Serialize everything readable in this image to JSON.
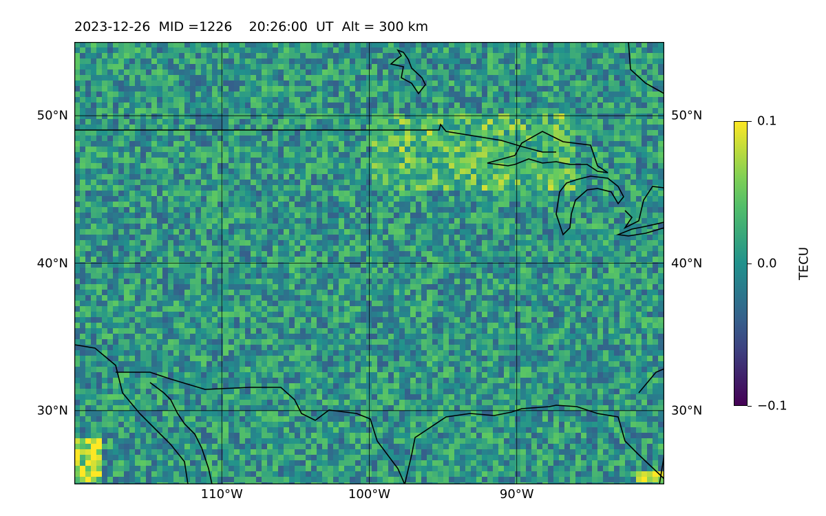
{
  "title": "2023-12-26  MID =1226    20:26:00  UT  Alt = 300 km",
  "map": {
    "type": "heatmap",
    "projection": "equirectangular",
    "extent": {
      "lon": [
        -120,
        -80
      ],
      "lat": [
        25,
        55
      ]
    },
    "lat_ticks": [
      {
        "value": 50,
        "label": "50°N"
      },
      {
        "value": 40,
        "label": "40°N"
      },
      {
        "value": 30,
        "label": "30°N"
      }
    ],
    "lon_ticks": [
      {
        "value": -110,
        "label": "110°W"
      },
      {
        "value": -100,
        "label": "100°W"
      },
      {
        "value": -90,
        "label": "90°W"
      }
    ],
    "grid": true,
    "colormap": "viridis",
    "coastline_color": "#000000",
    "high_patches": [
      {
        "region": "northern plains / upper midwest",
        "lon": [
          -100,
          -86
        ],
        "lat": [
          45,
          50
        ],
        "level": 0.04
      },
      {
        "region": "southwest corner",
        "lon": [
          -120,
          -118
        ],
        "lat": [
          25,
          28
        ],
        "level": 0.1
      },
      {
        "region": "southeast corner",
        "lon": [
          -82,
          -80
        ],
        "lat": [
          25,
          26
        ],
        "level": 0.1
      }
    ]
  },
  "colorbar": {
    "label": "TECU",
    "min": -0.1,
    "max": 0.1,
    "ticks": [
      {
        "value": 0.1,
        "label": "0.1"
      },
      {
        "value": 0.0,
        "label": "0.0"
      },
      {
        "value": -0.1,
        "label": "−0.1"
      }
    ]
  }
}
